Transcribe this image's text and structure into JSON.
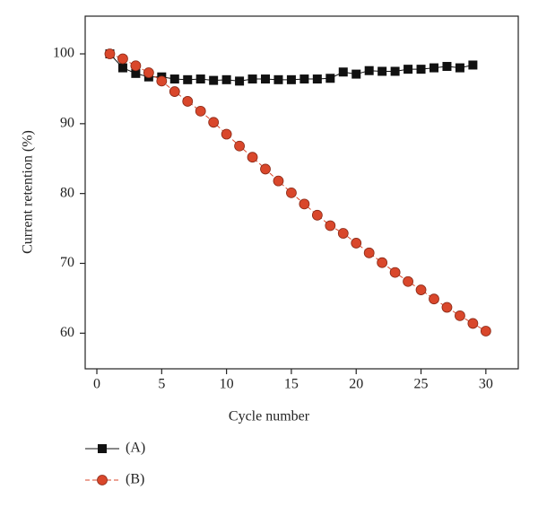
{
  "chart_data": {
    "type": "line",
    "xlabel": "Cycle number",
    "ylabel": "Current retention (%)",
    "xlim": [
      -0.9,
      32.5
    ],
    "xticks": [
      0,
      5,
      10,
      15,
      20,
      25,
      30
    ],
    "ylim": [
      54.9,
      105.4
    ],
    "yticks": [
      60,
      70,
      80,
      90,
      100
    ],
    "legend": "bottom-left",
    "series": [
      {
        "name": "(A)",
        "color": "#111111",
        "marker": "square",
        "x": [
          1,
          2,
          3,
          4,
          5,
          6,
          7,
          8,
          9,
          10,
          11,
          12,
          13,
          14,
          15,
          16,
          17,
          18,
          19,
          20,
          21,
          22,
          23,
          24,
          25,
          26,
          27,
          28,
          29
        ],
        "values": [
          100,
          98.0,
          97.2,
          96.7,
          96.7,
          96.4,
          96.3,
          96.4,
          96.2,
          96.3,
          96.1,
          96.4,
          96.4,
          96.3,
          96.3,
          96.4,
          96.4,
          96.5,
          97.4,
          97.1,
          97.6,
          97.5,
          97.5,
          97.8,
          97.8,
          98.0,
          98.2,
          98.0,
          98.4
        ]
      },
      {
        "name": "(B)",
        "color": "#d9472b",
        "marker": "circle",
        "x": [
          1,
          2,
          3,
          4,
          5,
          6,
          7,
          8,
          9,
          10,
          11,
          12,
          13,
          14,
          15,
          16,
          17,
          18,
          19,
          20,
          21,
          22,
          23,
          24,
          25,
          26,
          27,
          28,
          29,
          30
        ],
        "values": [
          100,
          99.3,
          98.3,
          97.3,
          96.1,
          94.6,
          93.2,
          91.8,
          90.2,
          88.5,
          86.8,
          85.2,
          83.5,
          81.8,
          80.1,
          78.5,
          76.9,
          75.4,
          74.3,
          72.9,
          71.5,
          70.1,
          68.7,
          67.4,
          66.2,
          64.9,
          63.7,
          62.5,
          61.4,
          60.3
        ]
      }
    ]
  }
}
